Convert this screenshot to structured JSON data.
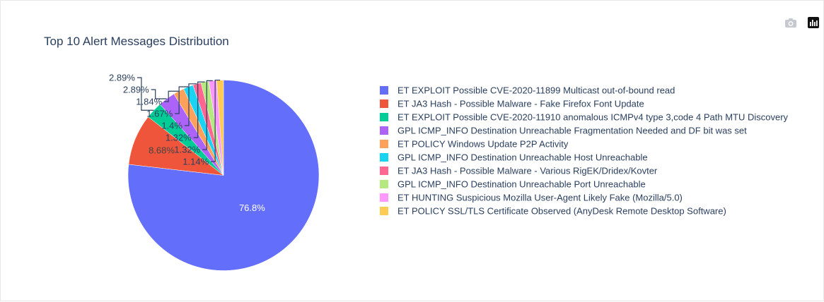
{
  "modebar": {
    "camera_icon": "camera-icon",
    "plotly_logo_icon": "plotly-logo-icon"
  },
  "chart_data": {
    "type": "pie",
    "title": "Top 10 Alert Messages Distribution",
    "legend_position": "right",
    "slices": [
      {
        "label": "ET EXPLOIT Possible CVE-2020-11899 Multicast out-of-bound read",
        "percent": 76.8,
        "text": "76.8%",
        "color": "#636efa"
      },
      {
        "label": "ET JA3 Hash - Possible Malware - Fake Firefox Font Update",
        "percent": 8.68,
        "text": "8.68%",
        "color": "#ef553b"
      },
      {
        "label": "ET EXPLOIT Possible CVE-2020-11910 anomalous ICMPv4 type 3,code 4 Path MTU Discovery",
        "percent": 2.89,
        "text": "2.89%",
        "color": "#00cc96"
      },
      {
        "label": "GPL ICMP_INFO Destination Unreachable Fragmentation Needed and DF bit was set",
        "percent": 2.89,
        "text": "2.89%",
        "color": "#ab63fa"
      },
      {
        "label": "ET POLICY Windows Update P2P Activity",
        "percent": 1.84,
        "text": "1.84%",
        "color": "#ffa15a"
      },
      {
        "label": "GPL ICMP_INFO Destination Unreachable Host Unreachable",
        "percent": 1.67,
        "text": "1.67%",
        "color": "#19d3f3"
      },
      {
        "label": "ET JA3 Hash - Possible Malware - Various RigEK/Dridex/Kovter",
        "percent": 1.4,
        "text": "1.4%",
        "color": "#ff6692"
      },
      {
        "label": "GPL ICMP_INFO Destination Unreachable Port Unreachable",
        "percent": 1.32,
        "text": "1.32%",
        "color": "#b6e880"
      },
      {
        "label": "ET HUNTING Suspicious Mozilla User-Agent Likely Fake (Mozilla/5.0)",
        "percent": 1.32,
        "text": "1.32%",
        "color": "#ff97ff"
      },
      {
        "label": "ET POLICY SSL/TLS Certificate Observed (AnyDesk Remote Desktop Software)",
        "percent": 1.14,
        "text": "1.14%",
        "color": "#fecb52"
      }
    ]
  }
}
